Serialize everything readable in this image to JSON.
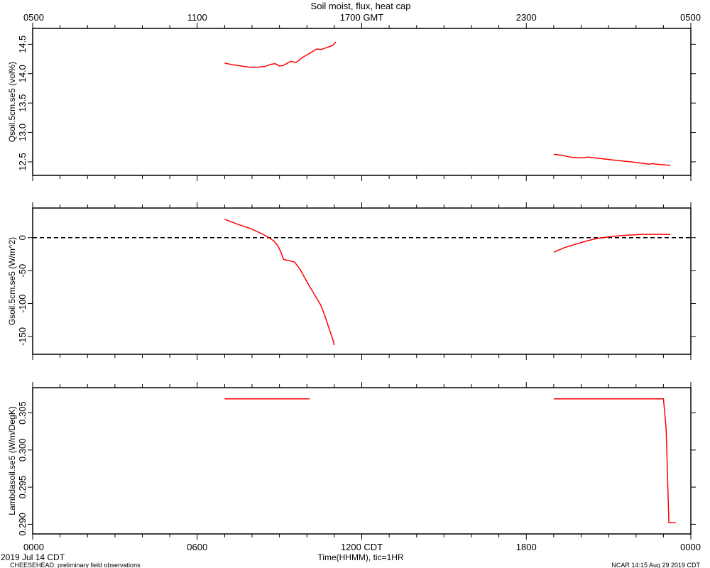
{
  "chart_data": {
    "type": "line",
    "title": "Soil moist, flux, heat cap",
    "top_axis": {
      "ticks": [
        {
          "hour": 0,
          "label": "0500"
        },
        {
          "hour": 6,
          "label": "1100"
        },
        {
          "hour": 12,
          "label": "1700 GMT"
        },
        {
          "hour": 18,
          "label": "2300"
        },
        {
          "hour": 24,
          "label": "0500"
        }
      ]
    },
    "bottom_axis": {
      "xlabel": "Time(HHMM), tic=1HR",
      "ticks": [
        {
          "hour": 0,
          "label": "0000"
        },
        {
          "hour": 6,
          "label": "0600"
        },
        {
          "hour": 12,
          "label": "1200 CDT"
        },
        {
          "hour": 18,
          "label": "1800"
        },
        {
          "hour": 24,
          "label": "0000"
        }
      ],
      "date_label": "2019 Jul 14 CDT"
    },
    "x_range_hours": [
      0,
      24
    ],
    "series_color": "#ff0000",
    "panels": [
      {
        "ylabel": "Qsoil.5cm.se5 (vol%)",
        "ylim": [
          12.27,
          14.77
        ],
        "yticks": [
          12.5,
          13.0,
          13.5,
          14.0,
          14.5
        ],
        "ytick_labels": [
          "12.5",
          "13.0",
          "13.5",
          "14.0",
          "14.5"
        ],
        "zero_line": false,
        "segments": [
          [
            [
              7.0,
              14.18
            ],
            [
              7.3,
              14.15
            ],
            [
              7.6,
              14.13
            ],
            [
              7.9,
              14.11
            ],
            [
              8.2,
              14.11
            ],
            [
              8.45,
              14.12
            ],
            [
              8.7,
              14.16
            ],
            [
              8.85,
              14.17
            ],
            [
              9.0,
              14.13
            ],
            [
              9.15,
              14.14
            ],
            [
              9.4,
              14.21
            ],
            [
              9.6,
              14.19
            ],
            [
              9.85,
              14.28
            ],
            [
              10.05,
              14.33
            ],
            [
              10.35,
              14.42
            ],
            [
              10.5,
              14.41
            ],
            [
              10.7,
              14.44
            ],
            [
              10.95,
              14.48
            ],
            [
              11.05,
              14.54
            ]
          ],
          [
            [
              19.0,
              12.63
            ],
            [
              19.3,
              12.61
            ],
            [
              19.6,
              12.58
            ],
            [
              19.9,
              12.57
            ],
            [
              20.1,
              12.57
            ],
            [
              20.25,
              12.58
            ],
            [
              20.5,
              12.57
            ],
            [
              20.8,
              12.55
            ],
            [
              21.2,
              12.53
            ],
            [
              21.6,
              12.51
            ],
            [
              22.0,
              12.49
            ],
            [
              22.3,
              12.47
            ],
            [
              22.5,
              12.46
            ],
            [
              22.6,
              12.47
            ],
            [
              22.75,
              12.46
            ],
            [
              23.0,
              12.45
            ],
            [
              23.25,
              12.44
            ]
          ]
        ]
      },
      {
        "ylabel": "Gsoil.5cm.se5 (W/m^2)",
        "ylim": [
          -177,
          45
        ],
        "yticks": [
          -150,
          -100,
          -50,
          0
        ],
        "ytick_labels": [
          "-150",
          "-100",
          "-50",
          "0"
        ],
        "zero_line": true,
        "segments": [
          [
            [
              7.0,
              28
            ],
            [
              7.5,
              20
            ],
            [
              8.0,
              13
            ],
            [
              8.5,
              3
            ],
            [
              8.8,
              -5
            ],
            [
              8.95,
              -13
            ],
            [
              9.05,
              -22
            ],
            [
              9.15,
              -33
            ],
            [
              9.35,
              -35
            ],
            [
              9.55,
              -37
            ],
            [
              9.75,
              -48
            ],
            [
              10.0,
              -67
            ],
            [
              10.3,
              -88
            ],
            [
              10.5,
              -102
            ],
            [
              10.65,
              -118
            ],
            [
              10.8,
              -137
            ],
            [
              10.95,
              -155
            ],
            [
              11.0,
              -163
            ]
          ],
          [
            [
              19.0,
              -22
            ],
            [
              19.4,
              -15
            ],
            [
              19.8,
              -10
            ],
            [
              20.2,
              -5
            ],
            [
              20.6,
              -1
            ],
            [
              21.0,
              1
            ],
            [
              21.4,
              3
            ],
            [
              21.8,
              4
            ],
            [
              22.2,
              5
            ],
            [
              22.6,
              5
            ],
            [
              23.25,
              5
            ]
          ]
        ]
      },
      {
        "ylabel": "Lambdasoil.se5 (W/m/DegK)",
        "ylim": [
          0.2887,
          0.3084
        ],
        "yticks": [
          0.29,
          0.295,
          0.3,
          0.305
        ],
        "ytick_labels": [
          "0.290",
          "0.295",
          "0.300",
          "0.305"
        ],
        "zero_line": false,
        "segments": [
          [
            [
              7.0,
              0.3069
            ],
            [
              10.1,
              0.3069
            ]
          ],
          [
            [
              19.0,
              0.3069
            ],
            [
              23.0,
              0.3069
            ],
            [
              23.1,
              0.3029
            ],
            [
              23.2,
              0.2902
            ],
            [
              23.45,
              0.2902
            ]
          ]
        ]
      }
    ]
  },
  "footer": {
    "left": "CHEESEHEAD: preliminary field observations",
    "right": "NCAR 14:15 Aug 29 2019 CDT"
  }
}
